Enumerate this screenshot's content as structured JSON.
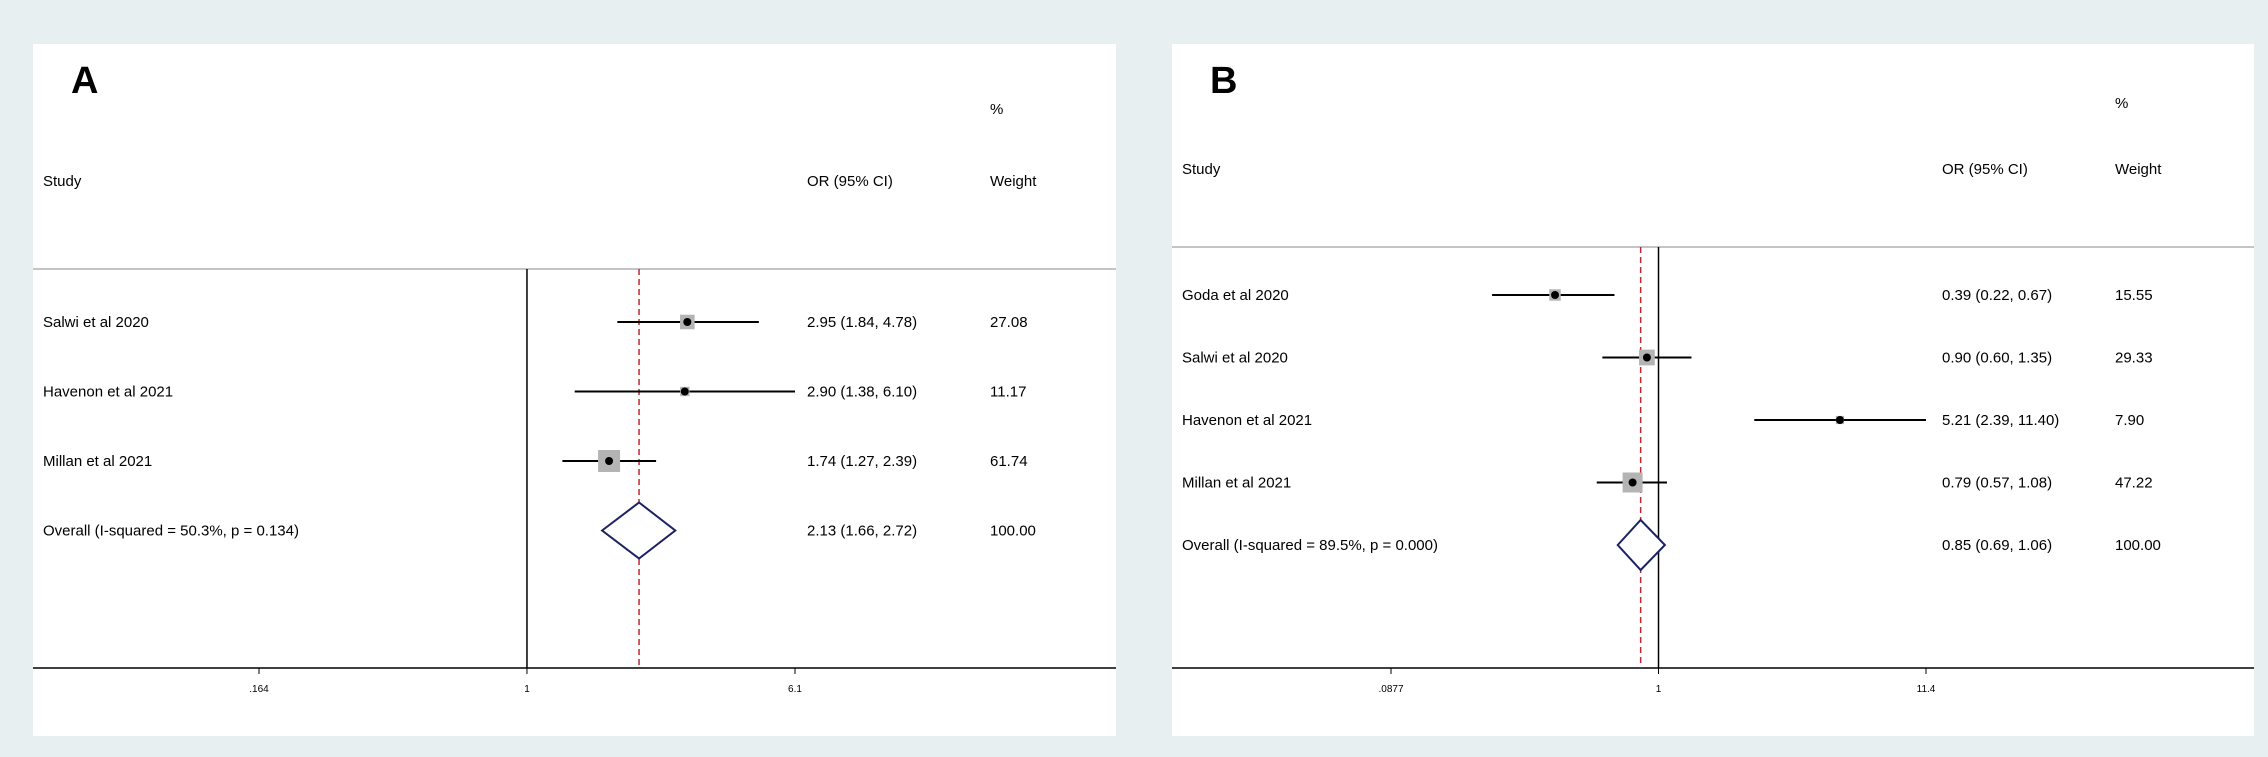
{
  "chart_data": [
    {
      "type": "forest",
      "panel_label": "A",
      "columns": {
        "study": "Study",
        "effect": "OR (95% CI)",
        "weight_top": "%",
        "weight_bottom": "Weight"
      },
      "x_scale": "log",
      "x_ticks": [
        {
          "label": ".164",
          "value": 0.164
        },
        {
          "label": "1",
          "value": 1
        },
        {
          "label": "6.1",
          "value": 6.1
        }
      ],
      "overall_line": 2.13,
      "studies": [
        {
          "label": "Salwi et al 2020",
          "or": 2.95,
          "lo": 1.84,
          "hi": 4.78,
          "ci_text": "2.95 (1.84, 4.78)",
          "weight": "27.08",
          "w": 27.08
        },
        {
          "label": "Havenon et al 2021",
          "or": 2.9,
          "lo": 1.38,
          "hi": 6.1,
          "ci_text": "2.90 (1.38, 6.10)",
          "weight": "11.17",
          "w": 11.17
        },
        {
          "label": "Millan et al 2021",
          "or": 1.74,
          "lo": 1.27,
          "hi": 2.39,
          "ci_text": "1.74 (1.27, 2.39)",
          "weight": "61.74",
          "w": 61.74
        }
      ],
      "overall": {
        "label": "Overall  (I-squared = 50.3%, p = 0.134)",
        "or": 2.13,
        "lo": 1.66,
        "hi": 2.72,
        "ci_text": "2.13 (1.66, 2.72)",
        "weight": "100.00"
      }
    },
    {
      "type": "forest",
      "panel_label": "B",
      "columns": {
        "study": "Study",
        "effect": "OR (95% CI)",
        "weight_top": "%",
        "weight_bottom": "Weight"
      },
      "x_scale": "log",
      "x_ticks": [
        {
          "label": ".0877",
          "value": 0.0877
        },
        {
          "label": "1",
          "value": 1
        },
        {
          "label": "11.4",
          "value": 11.4
        }
      ],
      "overall_line": 0.85,
      "studies": [
        {
          "label": "Goda et al 2020",
          "or": 0.39,
          "lo": 0.22,
          "hi": 0.67,
          "ci_text": "0.39 (0.22, 0.67)",
          "weight": "15.55",
          "w": 15.55
        },
        {
          "label": "Salwi et al 2020",
          "or": 0.9,
          "lo": 0.6,
          "hi": 1.35,
          "ci_text": "0.90 (0.60, 1.35)",
          "weight": "29.33",
          "w": 29.33
        },
        {
          "label": "Havenon et al 2021",
          "or": 5.21,
          "lo": 2.39,
          "hi": 11.4,
          "ci_text": "5.21 (2.39, 11.40)",
          "weight": "7.90",
          "w": 7.9
        },
        {
          "label": "Millan et al 2021",
          "or": 0.79,
          "lo": 0.57,
          "hi": 1.08,
          "ci_text": "0.79 (0.57, 1.08)",
          "weight": "47.22",
          "w": 47.22
        }
      ],
      "overall": {
        "label": "Overall  (I-squared = 89.5%, p = 0.000)",
        "or": 0.85,
        "lo": 0.69,
        "hi": 1.06,
        "ci_text": "0.85 (0.69, 1.06)",
        "weight": "100.00"
      }
    }
  ]
}
